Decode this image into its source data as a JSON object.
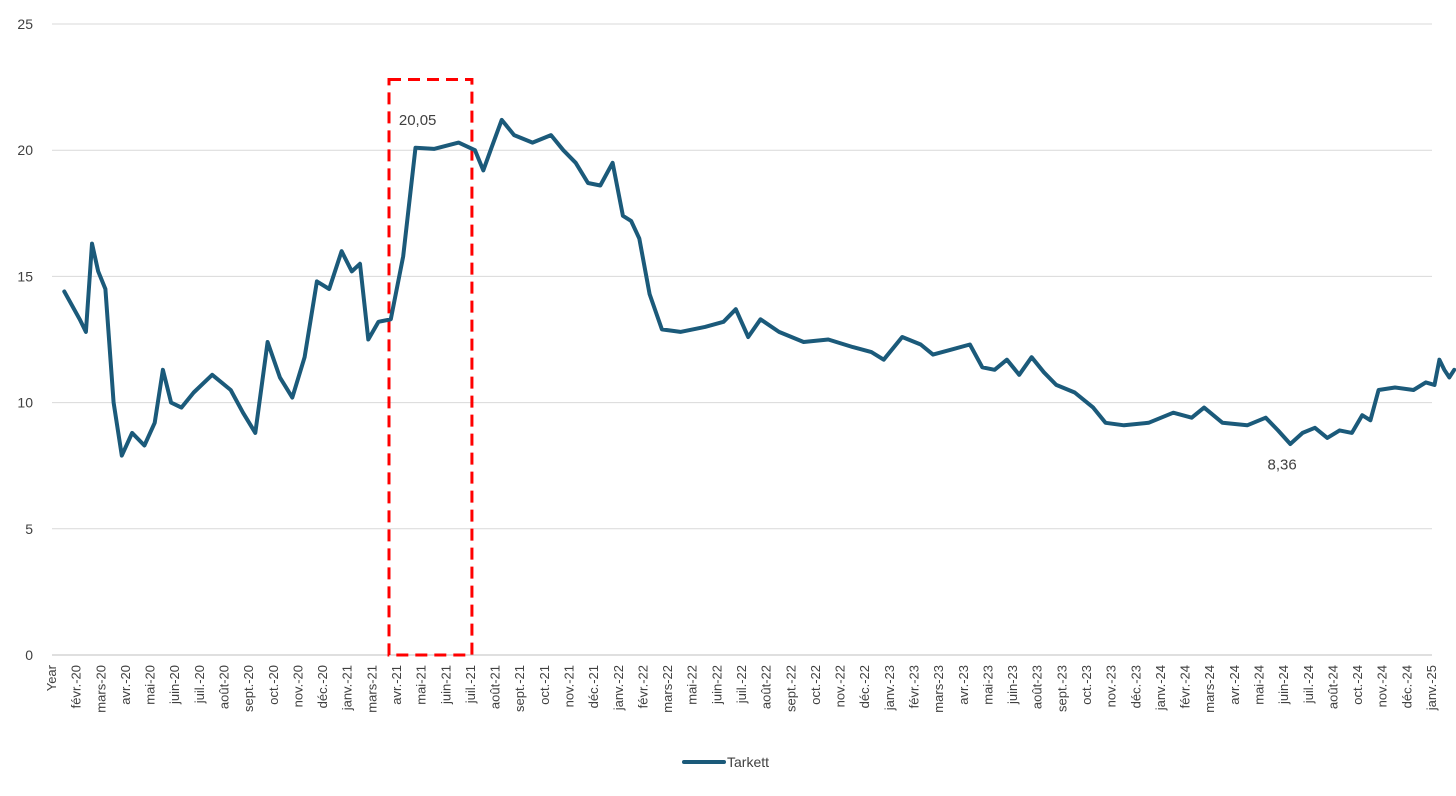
{
  "chart_data": {
    "type": "line",
    "ylim": [
      0,
      25
    ],
    "y_ticks": [
      "0",
      "5",
      "10",
      "15",
      "20",
      "25"
    ],
    "grid": "horizontal",
    "legend_position": "bottom",
    "x_labels": [
      "Year",
      "févr.-20",
      "mars-20",
      "avr.-20",
      "mai-20",
      "juin-20",
      "juil.-20",
      "août-20",
      "sept.-20",
      "oct.-20",
      "nov.-20",
      "déc.-20",
      "janv.-21",
      "mars-21",
      "avr.-21",
      "mai-21",
      "juin-21",
      "juil.-21",
      "août-21",
      "sept.-21",
      "oct.-21",
      "nov.-21",
      "déc.-21",
      "janv.-22",
      "févr.-22",
      "mars-22",
      "mai-22",
      "juin-22",
      "juil.-22",
      "août-22",
      "sept.-22",
      "oct.-22",
      "nov.-22",
      "déc.-22",
      "janv.-23",
      "févr.-23",
      "mars-23",
      "avr.-23",
      "mai-23",
      "juin-23",
      "août-23",
      "sept.-23",
      "oct.-23",
      "nov.-23",
      "déc.-23",
      "janv.-24",
      "févr.-24",
      "mars-24",
      "avr.-24",
      "mai-24",
      "juin-24",
      "juil.-24",
      "août-24",
      "oct.-24",
      "nov.-24",
      "déc.-24",
      "janv.-25"
    ],
    "series": [
      {
        "name": "Tarkett",
        "color": "#1b5a7a",
        "points": [
          [
            "Year",
            14.4
          ],
          [
            "févr.-20",
            13.3
          ],
          [
            "févr.-20",
            12.8
          ],
          [
            "févr.-20",
            16.3
          ],
          [
            "févr.-20",
            15.2
          ],
          [
            "mars-20",
            14.5
          ],
          [
            "mars-20",
            10.0
          ],
          [
            "mars-20",
            7.9
          ],
          [
            "avr.-20",
            8.8
          ],
          [
            "avr.-20",
            8.3
          ],
          [
            "mai-20",
            9.2
          ],
          [
            "mai-20",
            11.3
          ],
          [
            "mai-20",
            10.0
          ],
          [
            "juin-20",
            9.8
          ],
          [
            "juin-20",
            10.4
          ],
          [
            "juil.-20",
            11.1
          ],
          [
            "août-20",
            10.5
          ],
          [
            "août-20",
            9.6
          ],
          [
            "sept.-20",
            8.8
          ],
          [
            "sept.-20",
            12.4
          ],
          [
            "oct.-20",
            11.0
          ],
          [
            "oct.-20",
            10.2
          ],
          [
            "nov.-20",
            11.8
          ],
          [
            "nov.-20",
            14.8
          ],
          [
            "déc.-20",
            14.5
          ],
          [
            "déc.-20",
            16.0
          ],
          [
            "janv.-21",
            15.2
          ],
          [
            "janv.-21",
            15.5
          ],
          [
            "janv.-21",
            12.5
          ],
          [
            "mars-21",
            13.2
          ],
          [
            "mars-21",
            13.3
          ],
          [
            "avr.-21",
            15.8
          ],
          [
            "avr.-21",
            20.1
          ],
          [
            "mai-21",
            20.05
          ],
          [
            "juin-21",
            20.3
          ],
          [
            "juil.-21",
            20.0
          ],
          [
            "juil.-21",
            19.2
          ],
          [
            "juil.-21",
            20.1
          ],
          [
            "août-21",
            21.2
          ],
          [
            "août-21",
            20.6
          ],
          [
            "sept.-21",
            20.3
          ],
          [
            "oct.-21",
            20.6
          ],
          [
            "oct.-21",
            20.0
          ],
          [
            "nov.-21",
            19.5
          ],
          [
            "nov.-21",
            18.7
          ],
          [
            "déc.-21",
            18.6
          ],
          [
            "déc.-21",
            19.5
          ],
          [
            "janv.-22",
            17.4
          ],
          [
            "janv.-22",
            17.2
          ],
          [
            "janv.-22",
            16.5
          ],
          [
            "févr.-22",
            14.3
          ],
          [
            "févr.-22",
            12.9
          ],
          [
            "mars-22",
            12.8
          ],
          [
            "mai-22",
            13.0
          ],
          [
            "juin-22",
            13.2
          ],
          [
            "juin-22",
            13.7
          ],
          [
            "juil.-22",
            12.6
          ],
          [
            "juil.-22",
            13.3
          ],
          [
            "août-22",
            12.8
          ],
          [
            "sept.-22",
            12.4
          ],
          [
            "oct.-22",
            12.5
          ],
          [
            "nov.-22",
            12.2
          ],
          [
            "déc.-22",
            12.0
          ],
          [
            "déc.-22",
            11.7
          ],
          [
            "janv.-23",
            12.6
          ],
          [
            "févr.-23",
            12.3
          ],
          [
            "févr.-23",
            11.9
          ],
          [
            "mars-23",
            12.1
          ],
          [
            "avr.-23",
            12.3
          ],
          [
            "avr.-23",
            11.4
          ],
          [
            "mai-23",
            11.3
          ],
          [
            "mai-23",
            11.7
          ],
          [
            "juin-23",
            11.1
          ],
          [
            "juin-23",
            11.8
          ],
          [
            "août-23",
            11.2
          ],
          [
            "août-23",
            10.7
          ],
          [
            "sept.-23",
            10.4
          ],
          [
            "oct.-23",
            9.8
          ],
          [
            "oct.-23",
            9.2
          ],
          [
            "nov.-23",
            9.1
          ],
          [
            "déc.-23",
            9.2
          ],
          [
            "janv.-24",
            9.6
          ],
          [
            "févr.-24",
            9.4
          ],
          [
            "févr.-24",
            9.8
          ],
          [
            "mars-24",
            9.2
          ],
          [
            "avr.-24",
            9.1
          ],
          [
            "mai-24",
            9.4
          ],
          [
            "mai-24",
            8.9
          ],
          [
            "juin-24",
            8.36
          ],
          [
            "juin-24",
            8.8
          ],
          [
            "juil.-24",
            9.0
          ],
          [
            "juil.-24",
            8.6
          ],
          [
            "août-24",
            8.9
          ],
          [
            "août-24",
            8.8
          ],
          [
            "oct.-24",
            9.5
          ],
          [
            "oct.-24",
            9.3
          ],
          [
            "oct.-24",
            10.5
          ],
          [
            "nov.-24",
            10.6
          ],
          [
            "déc.-24",
            10.5
          ],
          [
            "déc.-24",
            10.8
          ],
          [
            "janv.-25",
            10.7
          ],
          [
            "janv.-25",
            11.7
          ],
          [
            "janv.-25",
            11.3
          ],
          [
            "janv.-25",
            11.0
          ],
          [
            "janv.-25",
            11.3
          ]
        ]
      }
    ],
    "annotations": [
      {
        "text": "20,05",
        "x": "mai-21",
        "y": 20.05
      },
      {
        "text": "8,36",
        "x": "juin-24",
        "y": 8.36
      }
    ],
    "highlight_box": {
      "x_from": "avr.-21",
      "x_to": "juil.-21",
      "y_from": 0,
      "y_to": 22.8,
      "color": "#ff0000",
      "style": "dashed"
    }
  }
}
